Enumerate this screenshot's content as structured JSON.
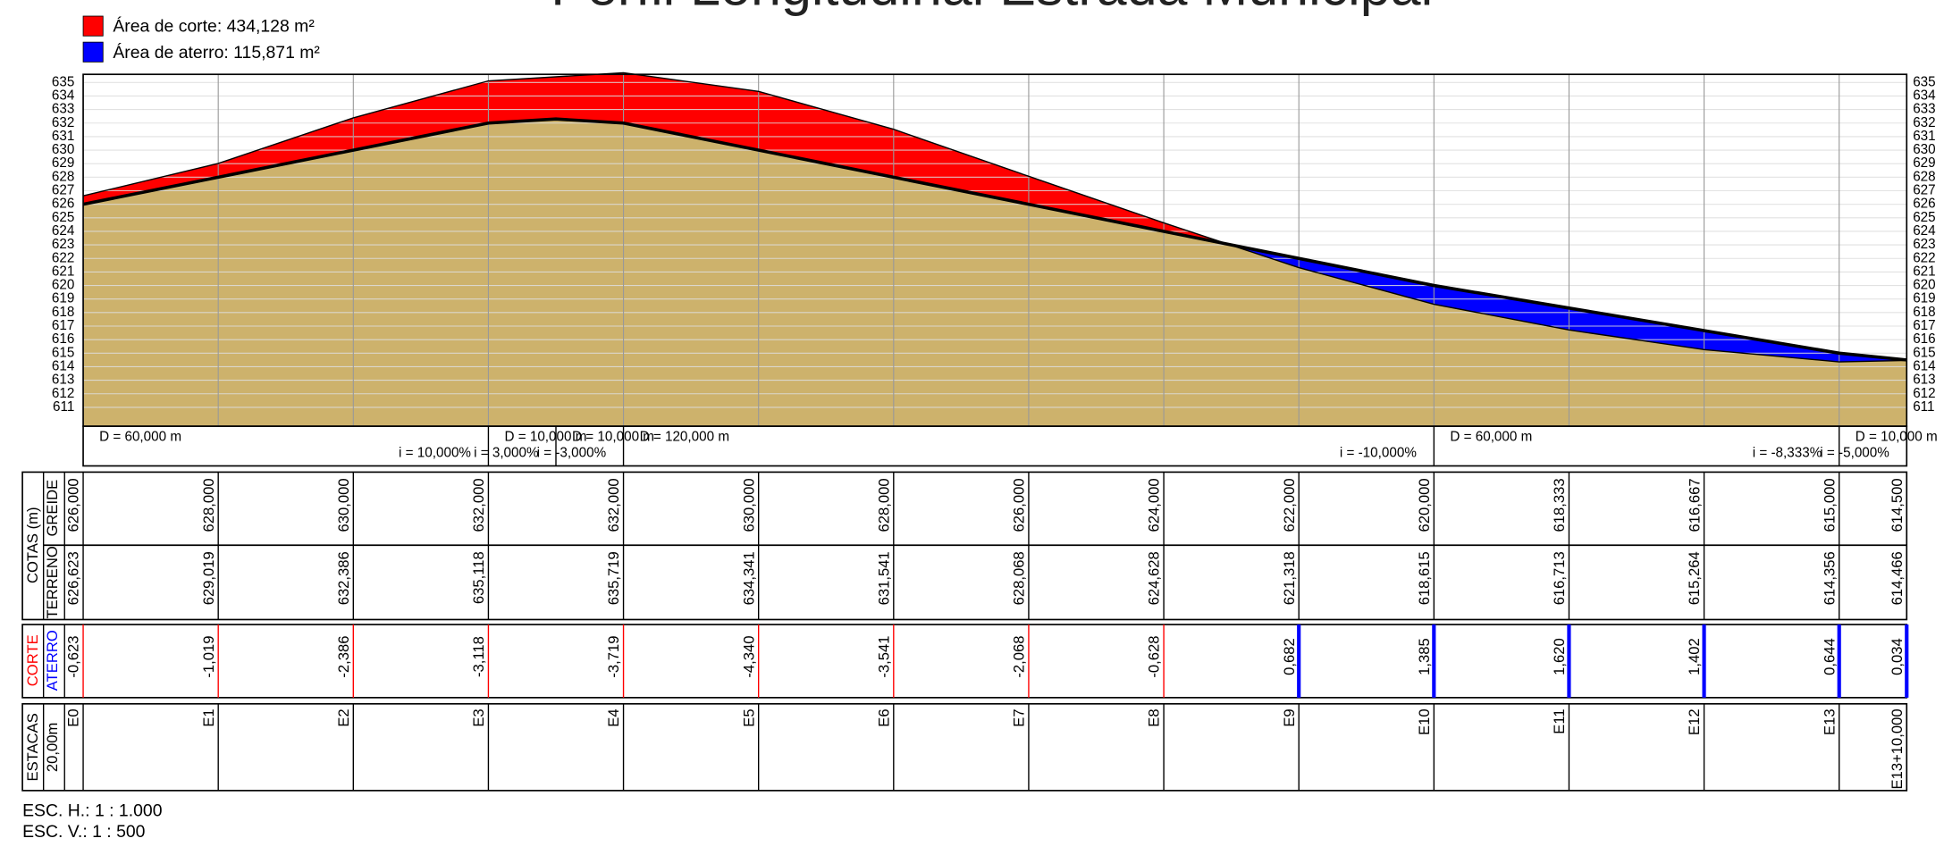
{
  "chart_data": {
    "type": "profile",
    "title": "Perfil Longitudinal Estrada Municipal",
    "legend": [
      {
        "text": "Área de corte: 434,128 m²",
        "color": "#ff0000"
      },
      {
        "text": "Área de aterro: 115,871 m²",
        "color": "#0000ff"
      }
    ],
    "ground_color": "#cdb26c",
    "stations": [
      "E0",
      "E1",
      "E2",
      "E3",
      "E4",
      "E5",
      "E6",
      "E7",
      "E8",
      "E9",
      "E10",
      "E11",
      "E12",
      "E13",
      "E13+10,000"
    ],
    "x": [
      0,
      20,
      40,
      60,
      80,
      100,
      120,
      140,
      160,
      180,
      200,
      220,
      240,
      260,
      270
    ],
    "greide": {
      "name": "GREIDE",
      "values": [
        626,
        628,
        630,
        632,
        632,
        630,
        628,
        626,
        624,
        622,
        620,
        618.333,
        616.667,
        615,
        614.5
      ],
      "value_labels": [
        "626,000",
        "628,000",
        "630,000",
        "632,000",
        "632,000",
        "630,000",
        "628,000",
        "626,000",
        "624,000",
        "622,000",
        "620,000",
        "618,333",
        "616,667",
        "615,000",
        "614,500"
      ]
    },
    "terreno": {
      "name": "TERRENO",
      "values": [
        626.623,
        629.019,
        632.386,
        635.118,
        635.719,
        634.341,
        631.541,
        628.068,
        624.628,
        621.318,
        618.615,
        616.713,
        615.264,
        614.356,
        614.466
      ],
      "value_labels": [
        "626,623",
        "629,019",
        "632,386",
        "635,118",
        "635,719",
        "634,341",
        "631,541",
        "628,068",
        "624,628",
        "621,318",
        "618,615",
        "616,713",
        "615,264",
        "614,356",
        "614,466"
      ]
    },
    "corte_aterro": {
      "corte_name": "CORTE",
      "aterro_name": "ATERRO",
      "corte_color": "#ff0000",
      "aterro_color": "#0000ff",
      "values": [
        -0.623,
        -1.019,
        -2.386,
        -3.118,
        -3.719,
        -4.34,
        -3.541,
        -2.068,
        -0.628,
        0.682,
        1.385,
        1.62,
        1.402,
        0.644,
        0.034
      ],
      "value_labels": [
        "-0,623",
        "-1,019",
        "-2,386",
        "-3,118",
        "-3,719",
        "-4,340",
        "-3,541",
        "-2,068",
        "-0,628",
        "0,682",
        "1,385",
        "1,620",
        "1,402",
        "0,644",
        "0,034"
      ]
    },
    "segments": [
      {
        "length": 60,
        "length_label": "D = 60,000 m",
        "slope": 10,
        "slope_label": "i = 10,000%"
      },
      {
        "length": 10,
        "length_label": "D = 10,000 m",
        "slope": 3,
        "slope_label": "i = 3,000%"
      },
      {
        "length": 10,
        "length_label": "D = 10,000 m",
        "slope": -3,
        "slope_label": "i = -3,000%"
      },
      {
        "length": 120,
        "length_label": "D = 120,000 m",
        "slope": -10,
        "slope_label": "i = -10,000%"
      },
      {
        "length": 60,
        "length_label": "D = 60,000 m",
        "slope": -8.333,
        "slope_label": "i = -8,333%"
      },
      {
        "length": 10,
        "length_label": "D = 10,000 m",
        "slope": -5,
        "slope_label": "i = -5,000%"
      }
    ],
    "ylim": [
      609.6,
      635.6
    ],
    "yticks": [
      611,
      612,
      613,
      614,
      615,
      616,
      617,
      618,
      619,
      620,
      621,
      622,
      623,
      624,
      625,
      626,
      627,
      628,
      629,
      630,
      631,
      632,
      633,
      634,
      635
    ],
    "grid": true,
    "table_labels": {
      "cotas": "COTAS (m)",
      "estacas": "ESTACAS",
      "spacing": "20,00m"
    },
    "scales": [
      "ESC. H.: 1 : 1.000",
      "ESC. V.: 1 : 500"
    ]
  }
}
